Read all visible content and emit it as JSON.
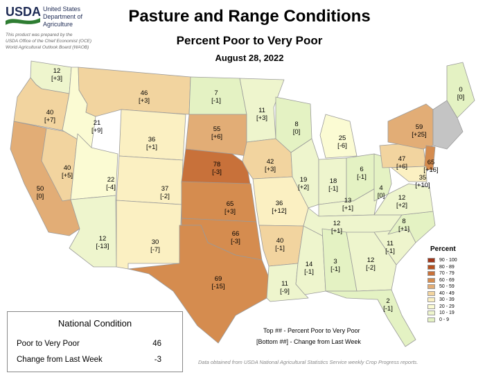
{
  "header": {
    "agency": "USDA",
    "dept_line1": "United States",
    "dept_line2": "Department of",
    "dept_line3": "Agriculture",
    "credit_line1": "This product was prepared by the",
    "credit_line2": "USDA Office of the Chief Economist (OCE)",
    "credit_line3": "World Agricultural Outlook Board (WAOB)",
    "title": "Pasture and Range Conditions",
    "subtitle": "Percent Poor to Very Poor",
    "date": "August 28, 2022"
  },
  "colors": {
    "brand_navy": "#1d2a54",
    "brand_green": "#2e7d32",
    "no_data": "#c4c4c4",
    "water": "#ffffff"
  },
  "legend": {
    "title": "Percent",
    "bins": [
      {
        "label": "90 - 100",
        "color": "#a0361a"
      },
      {
        "label": "80 - 89",
        "color": "#b7521f"
      },
      {
        "label": "70 - 79",
        "color": "#c8713a"
      },
      {
        "label": "60 - 69",
        "color": "#d58c4f"
      },
      {
        "label": "50 - 59",
        "color": "#e2ad76"
      },
      {
        "label": "40 - 49",
        "color": "#f2d49f"
      },
      {
        "label": "30 - 39",
        "color": "#fbf0c2"
      },
      {
        "label": "20 - 29",
        "color": "#fbfbd3"
      },
      {
        "label": "10 - 19",
        "color": "#eef5cd"
      },
      {
        "label": "0 - 9",
        "color": "#e4f2c3"
      }
    ]
  },
  "national": {
    "title": "National Condition",
    "rows": [
      {
        "label": "Poor to Very Poor",
        "value": "46"
      },
      {
        "label": "Change from Last Week",
        "value": "-3"
      }
    ]
  },
  "key": {
    "top": "Top ## - Percent Poor to Very Poor",
    "bottom": "[Bottom ##] - Change from Last Week"
  },
  "source": "Data obtained from USDA National Agricultural Statistics Service weekly Crop Progress reports.",
  "states": [
    {
      "id": "WA",
      "pct": 12,
      "chg": "[+3]"
    },
    {
      "id": "OR",
      "pct": 40,
      "chg": "[+7]"
    },
    {
      "id": "CA",
      "pct": 50,
      "chg": "[0]"
    },
    {
      "id": "NV",
      "pct": 40,
      "chg": "[+5]"
    },
    {
      "id": "ID",
      "pct": 21,
      "chg": "[+9]"
    },
    {
      "id": "MT",
      "pct": 46,
      "chg": "[+3]"
    },
    {
      "id": "WY",
      "pct": 36,
      "chg": "[+1]"
    },
    {
      "id": "UT",
      "pct": 22,
      "chg": "[-4]"
    },
    {
      "id": "AZ",
      "pct": 12,
      "chg": "[-13]"
    },
    {
      "id": "CO",
      "pct": 37,
      "chg": "[-2]"
    },
    {
      "id": "NM",
      "pct": 30,
      "chg": "[-7]"
    },
    {
      "id": "ND",
      "pct": 7,
      "chg": "[-1]"
    },
    {
      "id": "SD",
      "pct": 55,
      "chg": "[+6]"
    },
    {
      "id": "NE",
      "pct": 78,
      "chg": "[-3]"
    },
    {
      "id": "KS",
      "pct": 65,
      "chg": "[+3]"
    },
    {
      "id": "OK",
      "pct": 66,
      "chg": "[-3]"
    },
    {
      "id": "TX",
      "pct": 69,
      "chg": "[-15]"
    },
    {
      "id": "MN",
      "pct": 11,
      "chg": "[+3]"
    },
    {
      "id": "IA",
      "pct": 42,
      "chg": "[+3]"
    },
    {
      "id": "MO",
      "pct": 36,
      "chg": "[+12]"
    },
    {
      "id": "AR",
      "pct": 40,
      "chg": "[-1]"
    },
    {
      "id": "LA",
      "pct": 11,
      "chg": "[-9]"
    },
    {
      "id": "WI",
      "pct": 8,
      "chg": "[0]"
    },
    {
      "id": "IL",
      "pct": 19,
      "chg": "[+2]"
    },
    {
      "id": "MS",
      "pct": 14,
      "chg": "[-1]"
    },
    {
      "id": "MI",
      "pct": 25,
      "chg": "[-6]"
    },
    {
      "id": "IN",
      "pct": 18,
      "chg": "[-1]"
    },
    {
      "id": "OH",
      "pct": 6,
      "chg": "[-1]"
    },
    {
      "id": "KY",
      "pct": 13,
      "chg": "[+1]"
    },
    {
      "id": "TN",
      "pct": 12,
      "chg": "[+1]"
    },
    {
      "id": "AL",
      "pct": 3,
      "chg": "[-1]"
    },
    {
      "id": "GA",
      "pct": 12,
      "chg": "[-2]"
    },
    {
      "id": "FL",
      "pct": 2,
      "chg": "[-1]"
    },
    {
      "id": "SC",
      "pct": 11,
      "chg": "[-1]"
    },
    {
      "id": "NC",
      "pct": 8,
      "chg": "[+1]"
    },
    {
      "id": "VA",
      "pct": 12,
      "chg": "[+2]"
    },
    {
      "id": "WV",
      "pct": 4,
      "chg": "[0]"
    },
    {
      "id": "PA",
      "pct": 47,
      "chg": "[+6]"
    },
    {
      "id": "NY",
      "pct": 59,
      "chg": "[+25]"
    },
    {
      "id": "NJ",
      "pct": 65,
      "chg": "[+16]"
    },
    {
      "id": "MD",
      "pct": 35,
      "chg": "[+10]"
    },
    {
      "id": "ME",
      "pct": 0,
      "chg": "[0]"
    },
    {
      "id": "NE_NODATA",
      "pct": null,
      "chg": ""
    }
  ]
}
